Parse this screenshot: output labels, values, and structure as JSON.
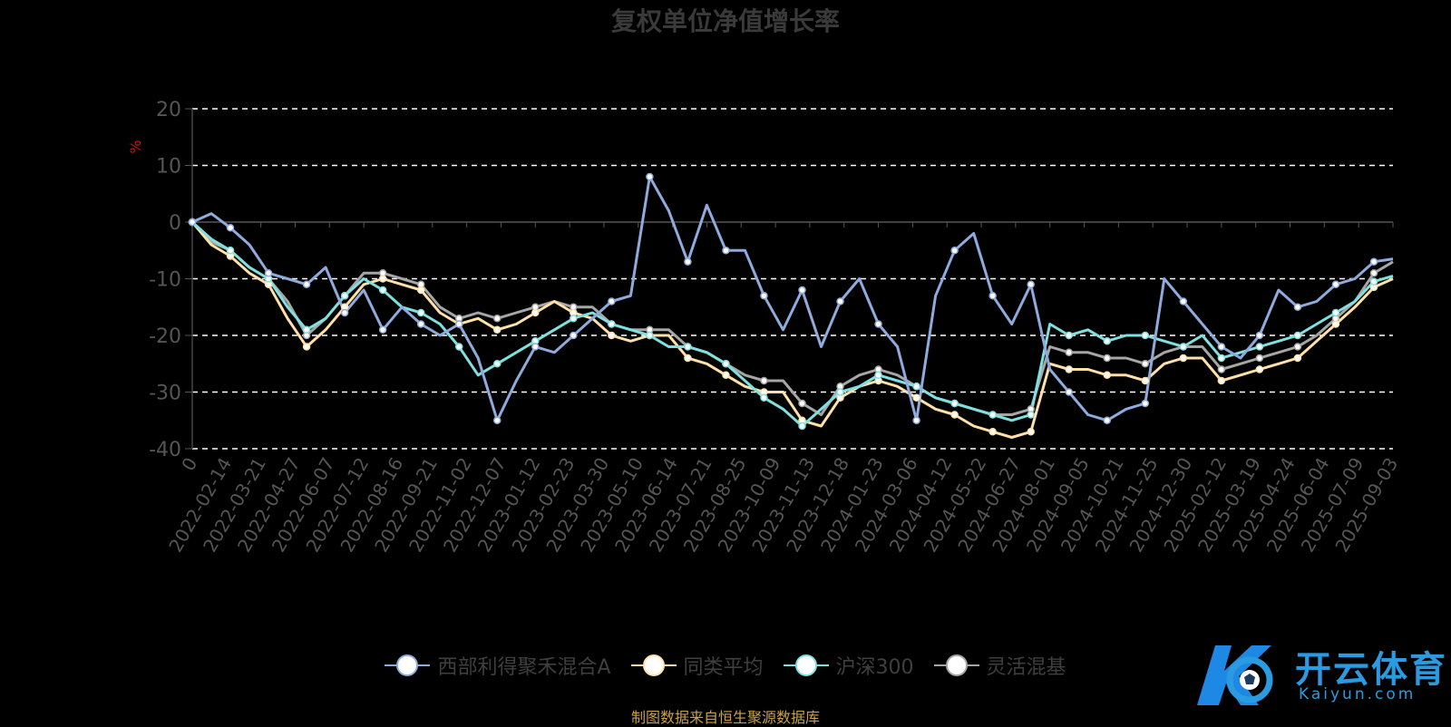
{
  "chart_data": {
    "type": "line",
    "title": "复权单位净值增长率",
    "ylabel": "%",
    "ylim": [
      -40,
      20
    ],
    "yticks": [
      20,
      10,
      0,
      -10,
      -20,
      -30,
      -40
    ],
    "xticks": [
      "0",
      "2022-02-14",
      "2022-03-21",
      "2022-04-27",
      "2022-06-07",
      "2022-07-12",
      "2022-08-16",
      "2022-09-21",
      "2022-11-02",
      "2022-12-07",
      "2023-01-12",
      "2023-02-23",
      "2023-03-30",
      "2023-05-10",
      "2023-06-14",
      "2023-07-21",
      "2023-08-25",
      "2023-10-09",
      "2023-11-13",
      "2023-12-18",
      "2024-01-23",
      "2024-03-06",
      "2024-04-12",
      "2024-05-22",
      "2024-06-27",
      "2024-08-01",
      "2024-09-05",
      "2024-10-21",
      "2024-11-25",
      "2024-12-30",
      "2025-02-12",
      "2025-03-19",
      "2025-04-24",
      "2025-06-04",
      "2025-07-09",
      "2025-09-03"
    ],
    "grid": "horizontal-dashed",
    "legend_position": "bottom",
    "series": [
      {
        "name": "西部利得聚禾混合A",
        "color": "#8faadc",
        "values": [
          0,
          1.5,
          -1,
          -4,
          -9,
          -10,
          -11,
          -8,
          -16,
          -12,
          -19,
          -15,
          -18,
          -20,
          -18,
          -24,
          -35,
          -28,
          -22,
          -23,
          -20,
          -17,
          -14,
          -13,
          8,
          2,
          -7,
          3,
          -5,
          -5,
          -13,
          -19,
          -12,
          -22,
          -14,
          -10,
          -18,
          -22,
          -35,
          -13,
          -5,
          -2,
          -13,
          -18,
          -11,
          -26,
          -30,
          -34,
          -35,
          -33,
          -32,
          -10,
          -14,
          -18,
          -22,
          -24,
          -20,
          -12,
          -15,
          -14,
          -11,
          -10,
          -7,
          -6.5
        ]
      },
      {
        "name": "同类平均",
        "color": "#ffe0a8",
        "values": [
          0,
          -4,
          -6,
          -9,
          -11,
          -17,
          -22,
          -19,
          -15,
          -11,
          -10,
          -11,
          -12,
          -16,
          -18,
          -17,
          -19,
          -18,
          -16,
          -14,
          -16,
          -17,
          -20,
          -21,
          -20,
          -20,
          -24,
          -25,
          -27,
          -29,
          -30,
          -30,
          -35,
          -36,
          -31,
          -29,
          -28,
          -29,
          -31,
          -33,
          -34,
          -36,
          -37,
          -38,
          -37,
          -25,
          -26,
          -26,
          -27,
          -27,
          -28,
          -25,
          -24,
          -24,
          -28,
          -27,
          -26,
          -25,
          -24,
          -21,
          -18,
          -15,
          -11.5,
          -10
        ]
      },
      {
        "name": "沪深300",
        "color": "#7fe0e0",
        "values": [
          0,
          -3,
          -5,
          -8,
          -10,
          -15,
          -19,
          -17,
          -13,
          -10,
          -12,
          -15,
          -16,
          -18,
          -22,
          -27,
          -25,
          -23,
          -21,
          -19,
          -17,
          -16,
          -18,
          -19,
          -20,
          -22,
          -22,
          -23,
          -25,
          -28,
          -31,
          -33,
          -36,
          -33,
          -30,
          -29,
          -27,
          -28,
          -29,
          -31,
          -32,
          -33,
          -34,
          -35,
          -34,
          -18,
          -20,
          -19,
          -21,
          -20,
          -20,
          -21,
          -22,
          -20,
          -24,
          -23,
          -22,
          -21,
          -20,
          -18,
          -16,
          -14,
          -10.5,
          -9.5
        ]
      },
      {
        "name": "灵活混基",
        "color": "#a6a6a6",
        "values": [
          0,
          -3.5,
          -5,
          -8,
          -10,
          -14,
          -20,
          -17,
          -13,
          -9,
          -9,
          -10,
          -11,
          -15,
          -17,
          -16,
          -17,
          -16,
          -15,
          -14,
          -15,
          -15,
          -18,
          -19,
          -19,
          -19,
          -22,
          -23,
          -25,
          -27,
          -28,
          -28,
          -32,
          -34,
          -29,
          -27,
          -26,
          -27,
          -29,
          -31,
          -32,
          -33,
          -34,
          -34,
          -33,
          -22,
          -23,
          -23,
          -24,
          -24,
          -25,
          -23,
          -22,
          -22,
          -26,
          -25,
          -24,
          -23,
          -22,
          -20,
          -17,
          -14,
          -9,
          -7
        ]
      }
    ]
  },
  "legend_items": [
    "西部利得聚禾混合A",
    "同类平均",
    "沪深300",
    "灵活混基"
  ],
  "source_text": "制图数据来自恒生聚源数据库",
  "source_color": "#c9a14a",
  "logo": {
    "text": "开云体育",
    "sub": "Kaiyun.com",
    "color": "#2a9be0"
  }
}
